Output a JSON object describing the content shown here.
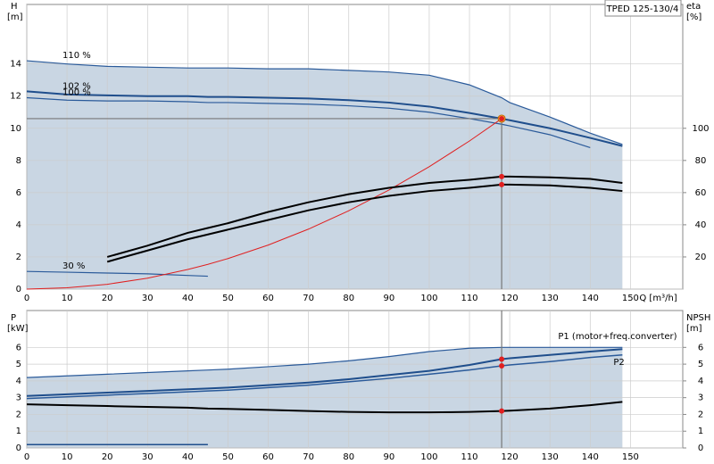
{
  "chart_data": [
    {
      "type": "line",
      "title": "TPED 125-130/4",
      "ylabel": "H",
      "yunit": "[m]",
      "y2label": "eta",
      "y2unit": "[%]",
      "xlabel": "Q [m³/h]",
      "x": [
        0,
        10,
        20,
        30,
        40,
        45,
        50,
        60,
        70,
        80,
        90,
        100,
        110,
        118,
        120,
        130,
        140,
        148
      ],
      "xlim": [
        0,
        163
      ],
      "xticks": [
        0,
        10,
        20,
        30,
        40,
        50,
        60,
        70,
        80,
        90,
        100,
        110,
        120,
        130,
        140,
        150
      ],
      "ylim": [
        0,
        17.7
      ],
      "yticks": [
        0,
        2,
        4,
        6,
        8,
        10,
        12,
        14
      ],
      "y2lim": [
        0,
        177
      ],
      "y2ticks": [
        20,
        40,
        60,
        80,
        100
      ],
      "grid": true,
      "duty_point_x": 118,
      "duty_point_y": 10.6,
      "series": [
        {
          "name": "110 %",
          "color": "#2a5a9a",
          "width": 1.2,
          "shade": true,
          "values": [
            14.2,
            14.0,
            13.85,
            13.8,
            13.75,
            13.75,
            13.75,
            13.7,
            13.7,
            13.6,
            13.5,
            13.3,
            12.7,
            11.9,
            11.6,
            10.7,
            9.7,
            9.0
          ]
        },
        {
          "name": "102 %",
          "color": "#1f4e8c",
          "width": 2,
          "values": [
            12.3,
            12.1,
            12.05,
            12.0,
            12.0,
            11.95,
            11.95,
            11.9,
            11.85,
            11.75,
            11.6,
            11.35,
            10.95,
            10.6,
            10.5,
            10.0,
            9.4,
            8.9
          ]
        },
        {
          "name": "100 %",
          "color": "#2a5a9a",
          "width": 1.2,
          "values": [
            11.9,
            11.75,
            11.7,
            11.7,
            11.65,
            11.6,
            11.6,
            11.55,
            11.5,
            11.4,
            11.25,
            11.0,
            10.6,
            10.25,
            10.15,
            9.6,
            8.8,
            null
          ]
        },
        {
          "name": "30 %",
          "color": "#2a5a9a",
          "width": 1.2,
          "values": [
            1.1,
            1.05,
            1.0,
            0.95,
            0.85,
            0.8,
            null,
            null,
            null,
            null,
            null,
            null,
            null,
            null,
            null,
            null,
            null,
            null
          ]
        },
        {
          "color": "#e02020",
          "width": 1,
          "values": [
            0,
            0.08,
            0.3,
            0.68,
            1.22,
            1.54,
            1.9,
            2.74,
            3.73,
            4.87,
            6.16,
            7.61,
            9.21,
            10.6,
            null,
            null,
            null,
            null
          ]
        },
        {
          "color": "#000000",
          "width": 2,
          "axis": "y2",
          "values": [
            null,
            null,
            20,
            27,
            35,
            38,
            41,
            48,
            54,
            59,
            63,
            66,
            68,
            70,
            70,
            69.5,
            68.5,
            66
          ]
        },
        {
          "color": "#000000",
          "width": 2,
          "axis": "y2",
          "values": [
            null,
            null,
            17,
            24,
            31,
            34,
            37,
            43,
            49,
            54,
            58,
            61,
            63,
            65,
            65,
            64.5,
            63,
            61
          ]
        }
      ]
    },
    {
      "type": "line",
      "ylabel": "P",
      "yunit": "[kW]",
      "y2label": "NPSH",
      "y2unit": "[m]",
      "x": [
        0,
        10,
        20,
        30,
        40,
        45,
        50,
        60,
        70,
        80,
        90,
        100,
        110,
        118,
        120,
        130,
        140,
        148
      ],
      "xlim": [
        0,
        163
      ],
      "xticks": [
        0,
        10,
        20,
        30,
        40,
        50,
        60,
        70,
        80,
        90,
        100,
        110,
        120,
        130,
        140,
        150
      ],
      "ylim": [
        0,
        8.2
      ],
      "yticks": [
        0,
        1,
        2,
        3,
        4,
        5,
        6
      ],
      "y2lim": [
        0,
        8.2
      ],
      "y2ticks": [
        0,
        1,
        2,
        3,
        4,
        5,
        6
      ],
      "grid": true,
      "duty_point_x": 118,
      "series": [
        {
          "color": "#2a5a9a",
          "width": 1.2,
          "shade": true,
          "values": [
            4.2,
            4.3,
            4.4,
            4.5,
            4.6,
            4.65,
            4.7,
            4.85,
            5.0,
            5.2,
            5.45,
            5.75,
            5.95,
            6.0,
            6.0,
            6.0,
            6.0,
            6.0
          ]
        },
        {
          "name": "P1 (motor+freq.converter)",
          "color": "#1f4e8c",
          "width": 2,
          "values": [
            3.1,
            3.2,
            3.3,
            3.4,
            3.5,
            3.55,
            3.6,
            3.75,
            3.9,
            4.1,
            4.35,
            4.6,
            4.95,
            5.3,
            5.35,
            5.55,
            5.75,
            5.9
          ]
        },
        {
          "name": "P2",
          "color": "#2a5a9a",
          "width": 1.5,
          "values": [
            2.95,
            3.05,
            3.15,
            3.25,
            3.35,
            3.4,
            3.45,
            3.6,
            3.75,
            3.95,
            4.15,
            4.4,
            4.65,
            4.9,
            4.95,
            5.15,
            5.4,
            5.55
          ]
        },
        {
          "color": "#000000",
          "width": 2,
          "axis": "y2",
          "values": [
            2.6,
            2.55,
            2.5,
            2.45,
            2.4,
            2.35,
            2.33,
            2.27,
            2.2,
            2.15,
            2.12,
            2.12,
            2.15,
            2.2,
            2.22,
            2.35,
            2.55,
            2.75
          ]
        },
        {
          "color": "#1f4e8c",
          "width": 1.5,
          "values": [
            0.2,
            0.2,
            0.2,
            0.2,
            0.2,
            0.2,
            null,
            null,
            null,
            null,
            null,
            null,
            null,
            null,
            null,
            null,
            null,
            null
          ]
        }
      ]
    }
  ]
}
